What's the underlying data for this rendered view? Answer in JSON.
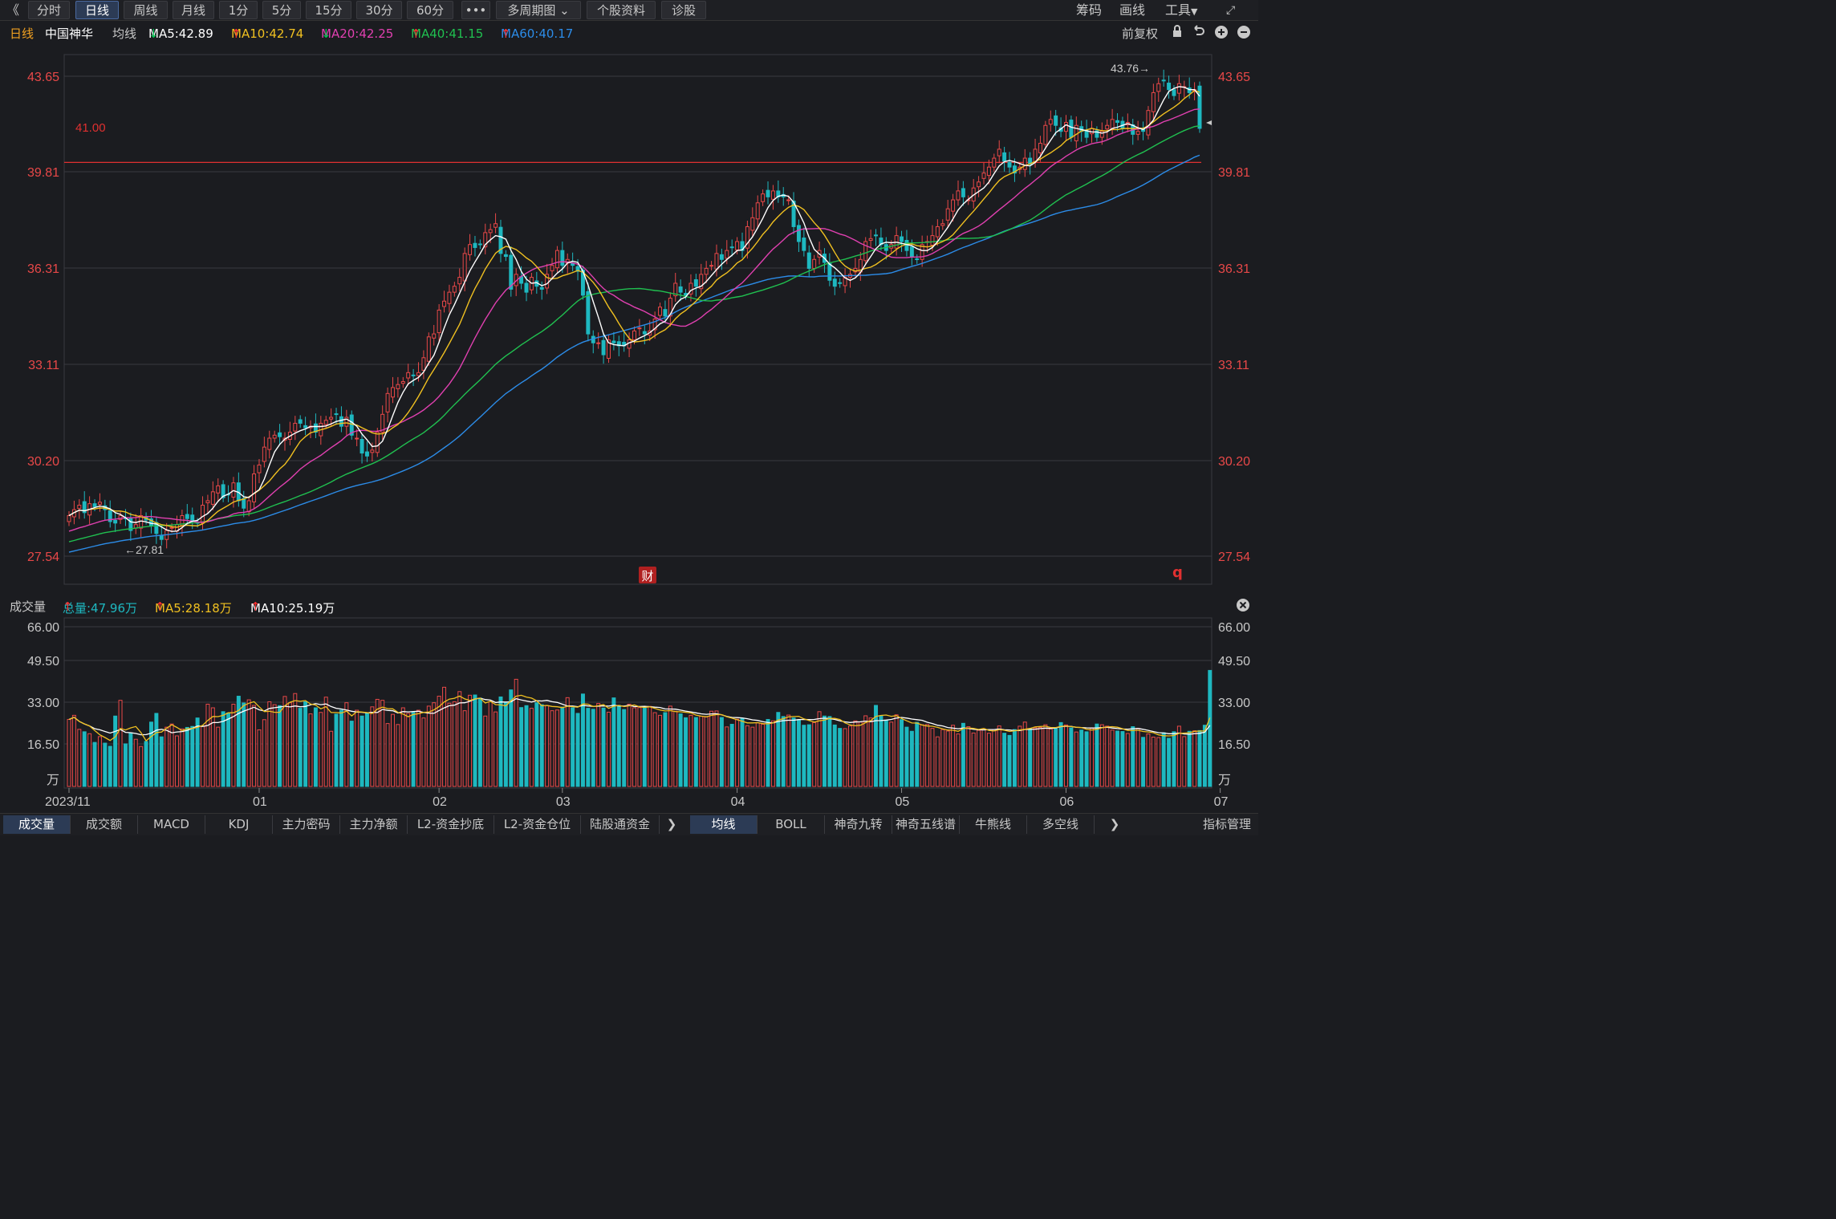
{
  "toolbar": {
    "collapse_glyph": "《",
    "period_buttons": [
      "分时",
      "日线",
      "周线",
      "月线",
      "1分",
      "5分",
      "15分",
      "30分",
      "60分"
    ],
    "active_period": "日线",
    "more_glyph": "•••",
    "multi_period": "多周期图",
    "stock_info": "个股资料",
    "diagnose": "诊股",
    "chip": "筹码",
    "draw": "画线",
    "tools": "工具",
    "expand_icon": "expand-icon"
  },
  "ma_legend": {
    "period": "日线",
    "stock_name": "中国神华",
    "avg_label": "均线",
    "items": [
      {
        "text": "MA5:42.89",
        "arrow": "↓",
        "color": "#ffffff",
        "arrow_color": "#00c853"
      },
      {
        "text": "MA10:42.74",
        "arrow": "↑",
        "color": "#f0c020",
        "arrow_color": "#ff3030"
      },
      {
        "text": "MA20:42.25",
        "arrow": "↓",
        "color": "#e040b0",
        "arrow_color": "#00c853"
      },
      {
        "text": "MA40:41.15",
        "arrow": "↑",
        "color": "#20c050",
        "arrow_color": "#ff3030"
      },
      {
        "text": "MA60:40.17",
        "arrow": "↑",
        "color": "#2c8ce8",
        "arrow_color": "#ff3030"
      }
    ],
    "adjust": "前复权"
  },
  "chart_data": [
    {
      "type": "candlestick",
      "title": "中国神华",
      "yticks": [
        "43.65",
        "39.81",
        "36.31",
        "33.11",
        "30.20",
        "27.54"
      ],
      "ylim": [
        27.54,
        43.65
      ],
      "xticks": [
        {
          "label": "2023/11",
          "index": 0
        },
        {
          "label": "01",
          "index": 37
        },
        {
          "label": "02",
          "index": 72
        },
        {
          "label": "03",
          "index": 96
        },
        {
          "label": "04",
          "index": 130
        },
        {
          "label": "05",
          "index": 162
        },
        {
          "label": "06",
          "index": 194
        },
        {
          "label": "07",
          "index": 224
        }
      ],
      "hline": {
        "value": 41.0,
        "label": "41.00",
        "color": "#e03030"
      },
      "annotations": [
        {
          "text": "43.76→",
          "value": 43.76,
          "index": 225
        },
        {
          "text": "←27.81",
          "value": 27.81,
          "index": 12
        }
      ],
      "marker": "财",
      "marker_right": "q",
      "closes": [
        28.9,
        29.1,
        29.25,
        29.0,
        29.3,
        29.2,
        29.35,
        29.1,
        28.7,
        28.65,
        28.9,
        28.8,
        28.4,
        28.6,
        28.9,
        28.75,
        28.55,
        28.3,
        28.1,
        28.4,
        28.5,
        28.6,
        28.9,
        28.8,
        28.75,
        28.65,
        29.25,
        29.4,
        29.7,
        29.9,
        29.5,
        29.6,
        30.0,
        29.4,
        29.15,
        29.4,
        30.3,
        30.6,
        31.2,
        31.5,
        31.6,
        31.55,
        31.5,
        31.7,
        32.0,
        32.0,
        31.85,
        31.9,
        31.7,
        32.0,
        32.1,
        32.2,
        32.3,
        31.9,
        32.2,
        31.6,
        31.5,
        31.0,
        30.9,
        31.1,
        31.7,
        32.3,
        33.0,
        33.2,
        33.3,
        33.4,
        33.7,
        33.6,
        33.7,
        34.2,
        34.9,
        35.0,
        35.8,
        36.1,
        36.4,
        36.6,
        36.9,
        37.7,
        38.0,
        37.9,
        38.0,
        38.4,
        38.5,
        38.7,
        37.7,
        37.6,
        36.5,
        37.0,
        36.7,
        36.4,
        36.9,
        36.6,
        36.5,
        37.0,
        37.3,
        37.8,
        37.3,
        37.5,
        37.3,
        37.1,
        36.3,
        35.0,
        34.7,
        34.7,
        34.3,
        34.8,
        34.7,
        34.6,
        34.6,
        34.8,
        35.1,
        35.2,
        35.0,
        35.1,
        35.5,
        35.9,
        35.6,
        36.2,
        36.7,
        36.4,
        36.3,
        36.7,
        36.6,
        37.0,
        37.2,
        37.3,
        37.7,
        37.5,
        37.8,
        37.9,
        38.1,
        37.8,
        38.6,
        38.9,
        39.4,
        39.7,
        39.6,
        39.8,
        39.6,
        39.6,
        39.5,
        38.6,
        38.1,
        37.8,
        37.2,
        37.5,
        37.8,
        37.4,
        36.8,
        36.6,
        36.7,
        36.9,
        37.0,
        37.2,
        37.5,
        38.1,
        38.2,
        38.3,
        38.0,
        37.8,
        38.0,
        38.3,
        38.1,
        37.8,
        37.6,
        37.5,
        38.0,
        38.1,
        38.3,
        38.6,
        38.7,
        39.2,
        39.5,
        39.8,
        39.6,
        39.5,
        39.9,
        40.1,
        40.4,
        40.6,
        40.9,
        41.2,
        40.8,
        40.6,
        40.4,
        40.6,
        40.9,
        40.7,
        41.2,
        41.4,
        42.0,
        42.2,
        42.0,
        41.8,
        42.1,
        41.6,
        42.0,
        41.8,
        41.6,
        41.9,
        41.6,
        41.8,
        42.0,
        42.2,
        42.1,
        41.9,
        42.1,
        41.7,
        41.8,
        41.8,
        42.5,
        43.1,
        43.4,
        43.5,
        43.2,
        43.0,
        43.4,
        43.3,
        43.1,
        43.2,
        41.9
      ],
      "volume": {
        "yticks": [
          "66.00",
          "49.50",
          "33.00",
          "16.50"
        ],
        "unit": "万",
        "ylim": [
          0,
          66.0
        ],
        "values": [
          27.7,
          29.4,
          23.6,
          22.6,
          21.8,
          18.2,
          20.6,
          17.9,
          16.6,
          29.1,
          35.6,
          17.6,
          22.1,
          19.5,
          16.5,
          18.6,
          26.6,
          30.2,
          20.5,
          24.5,
          25.8,
          20.9,
          23.8,
          24.4,
          24.8,
          28.3,
          25.0,
          34.0,
          32.5,
          24.5,
          30.9,
          30.4,
          34.0,
          37.3,
          34.5,
          35.8,
          33.5,
          23.4,
          27.6,
          35.0,
          33.8,
          33.4,
          37.2,
          34.6,
          38.4,
          32.3,
          35.0,
          30.0,
          32.5,
          30.6,
          36.9,
          22.8,
          29.9,
          31.5,
          34.6,
          27.0,
          31.5,
          29.1,
          30.3,
          32.9,
          36.0,
          35.6,
          26.0,
          29.8,
          25.6,
          32.5,
          30.2,
          30.6,
          31.5,
          28.3,
          33.2,
          34.6,
          37.3,
          41.0,
          34.4,
          35.0,
          39.2,
          31.3,
          37.7,
          37.8,
          36.5,
          29.1,
          35.0,
          30.8,
          37.0,
          34.6,
          39.9,
          44.3,
          32.6,
          33.4,
          32.3,
          34.6,
          33.8,
          33.4,
          31.3,
          31.6,
          32.8,
          36.7,
          32.5,
          30.2,
          38.2,
          32.3,
          31.9,
          34.3,
          32.4,
          30.7,
          36.6,
          33.5,
          31.8,
          34.0,
          32.5,
          32.6,
          32.5,
          33.1,
          30.5,
          29.4,
          30.5,
          33.2,
          31.1,
          30.0,
          28.4,
          29.4,
          28.5,
          29.0,
          28.7,
          31.1,
          31.2,
          28.5,
          24.6,
          25.7,
          27.8,
          28.2,
          25.1,
          24.5,
          26.3,
          25.7,
          27.7,
          27.1,
          30.6,
          28.9,
          29.5,
          28.3,
          27.6,
          25.3,
          25.5,
          26.4,
          30.9,
          29.1,
          28.9,
          25.4,
          24.0,
          23.9,
          25.0,
          27.1,
          26.6,
          29.2,
          28.3,
          33.5,
          29.2,
          27.4,
          26.6,
          29.6,
          27.6,
          24.5,
          22.8,
          26.5,
          25.5,
          25.6,
          24.0,
          20.5,
          23.5,
          22.9,
          25.3,
          21.7,
          26.1,
          24.7,
          22.1,
          23.2,
          23.8,
          22.0,
          23.5,
          25.0,
          22.0,
          21.1,
          23.5,
          24.9,
          26.6,
          23.8,
          24.2,
          24.4,
          25.5,
          23.8,
          23.9,
          26.4,
          25.4,
          24.2,
          22.5,
          23.3,
          22.6,
          24.0,
          25.8,
          25.5,
          24.9,
          23.3,
          22.9,
          22.7,
          21.9,
          24.7,
          24.0,
          20.3,
          21.7,
          20.4,
          20.2,
          22.2,
          19.9,
          22.6,
          24.9,
          20.6,
          22.8,
          23.0,
          23.1,
          25.3,
          47.96
        ]
      },
      "ma_colors": {
        "ma5": "#ffffff",
        "ma10": "#f0c020",
        "ma20": "#e040b0",
        "ma40": "#20c050",
        "ma60": "#2c8ce8"
      }
    }
  ],
  "vol_legend": {
    "title": "成交量",
    "total": "总量:47.96万",
    "total_arrow": "↑",
    "ma5": "MA5:28.18万",
    "ma5_arrow": "↑",
    "ma10": "MA10:25.19万",
    "ma10_arrow": "↑",
    "close_icon": "close-icon"
  },
  "bottom_tabs": {
    "left": [
      "成交量",
      "成交额",
      "MACD",
      "KDJ",
      "主力密码",
      "主力净额",
      "L2-资金抄底",
      "L2-资金仓位",
      "陆股通资金"
    ],
    "left_active": "成交量",
    "right": [
      "均线",
      "BOLL",
      "神奇九转",
      "神奇五线谱",
      "牛熊线",
      "多空线"
    ],
    "right_active": "均线",
    "indicator_manage": "指标管理",
    "more_glyph": "❯"
  },
  "colors": {
    "up": "#e84848",
    "down": "#1eb8c0",
    "axis_label": "#e84848",
    "grid": "#3a3a40",
    "bg": "#1b1c20"
  }
}
